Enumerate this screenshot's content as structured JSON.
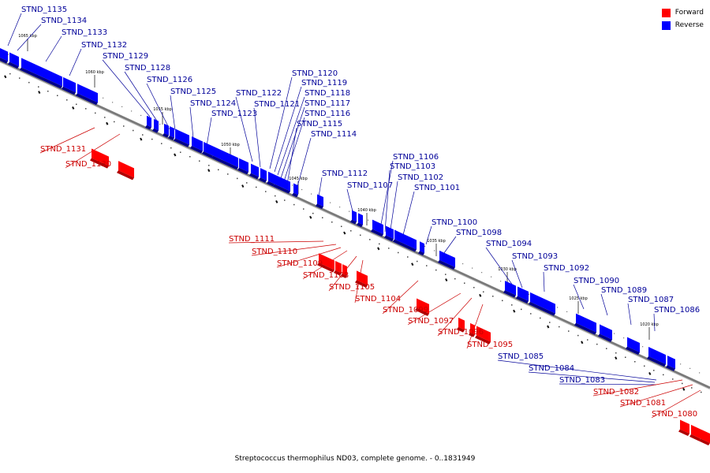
{
  "legend": {
    "forward_label": "Forward",
    "reverse_label": "Reverse",
    "forward_color": "#ff0000",
    "reverse_color": "#0000ff"
  },
  "caption": "Streptococcus thermophilus ND03, complete genome. - 0..1831949",
  "colors": {
    "axis": "#8a8a8a",
    "label_forward": "#cc0000",
    "label_reverse": "#000099"
  },
  "scale_labels": [
    "1065 kbp",
    "1060 kbp",
    "1055 kbp",
    "1050 kbp",
    "1045 kbp",
    "1040 kbp",
    "1035 kbp",
    "1030 kbp",
    "1025 kbp",
    "1020 kbp"
  ],
  "genes_reverse": [
    "STND_1135",
    "STND_1134",
    "STND_1133",
    "STND_1132",
    "STND_1129",
    "STND_1128",
    "STND_1126",
    "STND_1125",
    "STND_1124",
    "STND_1123",
    "STND_1122",
    "STND_1121",
    "STND_1120",
    "STND_1119",
    "STND_1118",
    "STND_1117",
    "STND_1116",
    "STND_1115",
    "STND_1114",
    "STND_1112",
    "STND_1107",
    "STND_1106",
    "STND_1103",
    "STND_1102",
    "STND_1101",
    "STND_1100",
    "STND_1098",
    "STND_1094",
    "STND_1093",
    "STND_1092",
    "STND_1090",
    "STND_1089",
    "STND_1087",
    "STND_1086",
    "STND_1085",
    "STND_1084",
    "STND_1083"
  ],
  "genes_forward": [
    "STND_1131",
    "STND_1130",
    "STND_1111",
    "STND_1110",
    "STND_1109",
    "STND_1108",
    "STND_1105",
    "STND_1104",
    "STND_1099",
    "STND_1097",
    "STND_1096",
    "STND_1095",
    "STND_1082",
    "STND_1081",
    "STND_1080"
  ]
}
